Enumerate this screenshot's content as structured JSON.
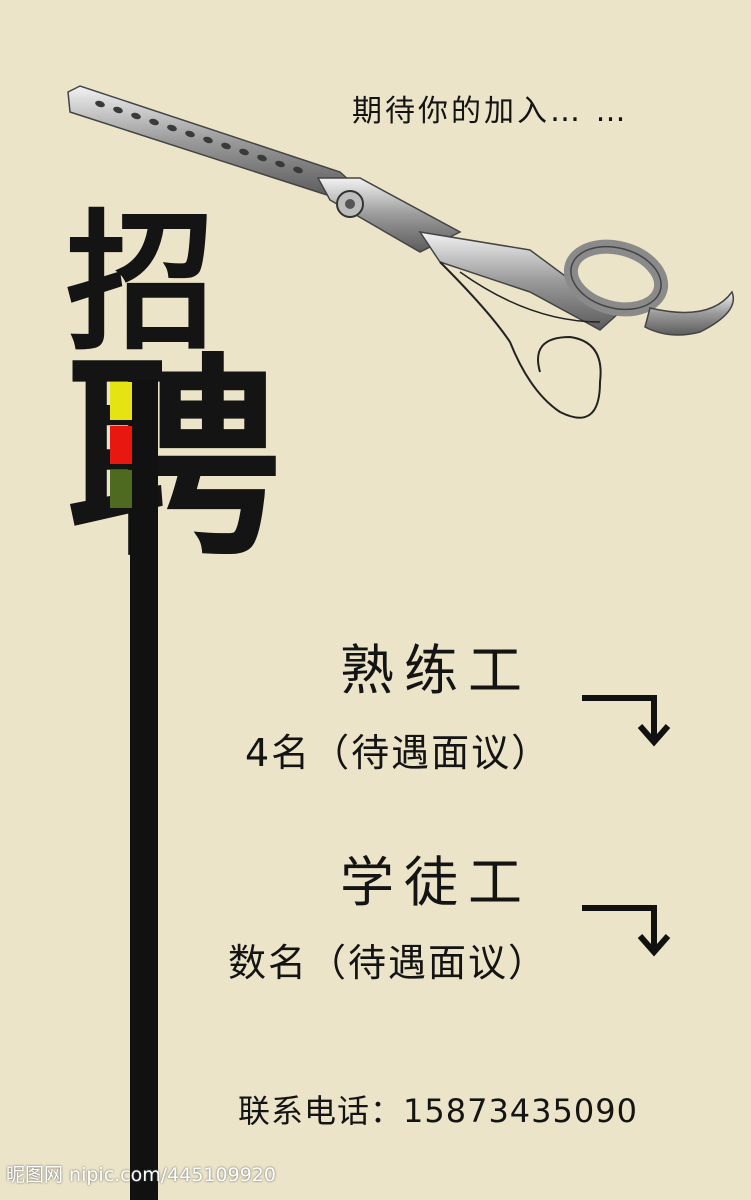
{
  "header": {
    "tagline": "期待你的加入… …"
  },
  "hero": {
    "char_1": "招",
    "char_2": "聘"
  },
  "colors": {
    "background": "#ece4c8",
    "text": "#141414",
    "bar": "#111111",
    "block_yellow": "#e6e312",
    "block_red": "#e8170f",
    "block_olive": "#4e6a20"
  },
  "jobs": [
    {
      "title": "熟练工",
      "detail": "4名（待遇面议）"
    },
    {
      "title": "学徒工",
      "detail": "数名（待遇面议）"
    }
  ],
  "contact": {
    "text": "联系电话：15873435090"
  },
  "watermark": {
    "text": "昵图网 nipic.com/445109920"
  },
  "icons": [
    "scissors-icon",
    "arrow-down-right-icon"
  ]
}
